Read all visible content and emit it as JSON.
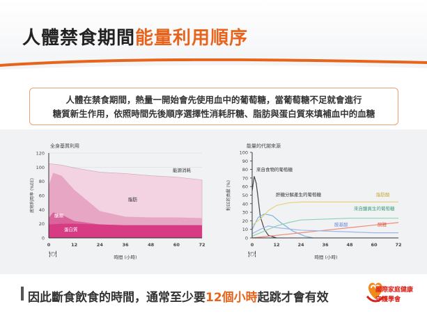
{
  "header": {
    "title_main": "人體禁食期間",
    "title_highlight": "能量利用順序"
  },
  "description": {
    "line1": "人體在禁食期間，熱量一開始會先使用血中的葡萄糖，當葡萄糖不足就會進行",
    "line2": "糖質新生作用，依照時間先後順序選擇性消耗肝糖、脂肪與蛋白質來填補血中的血糖"
  },
  "chart_data": [
    {
      "type": "area",
      "title": "全身基質利用",
      "ylabel": "底物利用率 (%EE)",
      "xlabel": "時間 (小時)",
      "x_ticks": [
        "0",
        "12",
        "24",
        "36",
        "48",
        "60",
        "72"
      ],
      "y_ticks": [
        "0",
        "20",
        "40",
        "60",
        "80",
        "100",
        "120"
      ],
      "ylim": [
        0,
        120
      ],
      "xlim": [
        0,
        72
      ],
      "series": [
        {
          "name": "能源消耗",
          "x": [
            0,
            6,
            12,
            24,
            36,
            48,
            60,
            72
          ],
          "values": [
            105,
            103,
            99,
            93,
            91,
            88,
            86,
            82
          ]
        },
        {
          "name": "脂肪",
          "x": [
            0,
            2,
            6,
            12,
            24,
            36,
            48,
            60,
            72
          ],
          "values": [
            74,
            92,
            88,
            68,
            38,
            30,
            29,
            29,
            28
          ]
        },
        {
          "name": "醣類",
          "x": [
            0,
            2,
            6,
            12,
            24,
            36,
            48,
            60,
            72
          ],
          "values": [
            28,
            36,
            33,
            24,
            19,
            18,
            18,
            18,
            18
          ]
        },
        {
          "name": "蛋白質",
          "x": [
            0,
            6,
            12,
            24,
            36,
            48,
            60,
            72
          ],
          "values": [
            19,
            20,
            20,
            19,
            18,
            18,
            18,
            18
          ]
        }
      ]
    },
    {
      "type": "line",
      "title": "能量的代謝來源",
      "ylabel": "對EE的貢獻 (%)",
      "xlabel": "時間 (小時)",
      "x_ticks": [
        "0",
        "12",
        "24",
        "36",
        "48",
        "60",
        "72"
      ],
      "y_ticks": [
        "0",
        "10",
        "20",
        "30",
        "40",
        "50",
        "60",
        "70",
        "80",
        "90",
        "100"
      ],
      "ylim": [
        0,
        100
      ],
      "xlim": [
        0,
        72
      ],
      "series": [
        {
          "name": "來自食物的葡萄糖",
          "color": "#444444",
          "x": [
            0,
            1,
            2,
            3,
            4,
            6,
            8,
            12
          ],
          "values": [
            55,
            72,
            64,
            45,
            25,
            10,
            3,
            0
          ]
        },
        {
          "name": "肝糖分解產生的葡萄糖",
          "color": "#7ab6e0",
          "x": [
            0,
            3,
            6,
            10,
            14,
            20,
            26,
            30
          ],
          "values": [
            10,
            24,
            28,
            26,
            18,
            8,
            2,
            0
          ]
        },
        {
          "name": "脂肪酸",
          "color": "#e8d27a",
          "x": [
            0,
            4,
            8,
            12,
            18,
            24,
            36,
            48,
            60,
            72
          ],
          "values": [
            15,
            22,
            32,
            38,
            41,
            42,
            42,
            42,
            42,
            42
          ]
        },
        {
          "name": "來自醣異生的葡萄糖",
          "color": "#8cd3b0",
          "x": [
            0,
            6,
            12,
            18,
            24,
            36,
            48,
            60,
            72
          ],
          "values": [
            2,
            8,
            14,
            18,
            21,
            22,
            23,
            23,
            23
          ]
        },
        {
          "name": "酮體",
          "color": "#f08a7a",
          "x": [
            0,
            12,
            24,
            36,
            48,
            60,
            72
          ],
          "values": [
            0,
            3,
            6,
            9,
            12,
            15,
            18
          ]
        },
        {
          "name": "胺基酸",
          "color": "#9fb4e8",
          "x": [
            0,
            4,
            8,
            12,
            24,
            36,
            48,
            60,
            72
          ],
          "values": [
            5,
            10,
            14,
            12,
            9,
            8,
            7,
            6,
            6
          ]
        }
      ]
    }
  ],
  "left_chart_labels": {
    "energy": "能源消耗",
    "fat": "脂肪",
    "carb": "醣類",
    "protein": "蛋白質"
  },
  "right_chart_labels": {
    "food_glucose": "來自食物的葡萄糖",
    "glycogen": "肝糖分解產生的葡萄糖",
    "fatty_acid": "脂肪酸",
    "gng": "來自醣異生的葡萄糖",
    "amino": "胺基酸",
    "ketone": "酮體"
  },
  "bottom": {
    "text_a": "因此斷食飲食的時間，通常至少要",
    "text_b": "12個小時",
    "text_c": "起跳才會有效"
  },
  "logo": {
    "line1": "國際家庭健康",
    "line2": "守護學會"
  },
  "colors": {
    "accent": "#e8641c",
    "energy_fill": "#f3d3e1",
    "fat_fill": "#e6a6c4",
    "carb_fill": "#d9649c",
    "protein_fill": "#d63b84"
  }
}
